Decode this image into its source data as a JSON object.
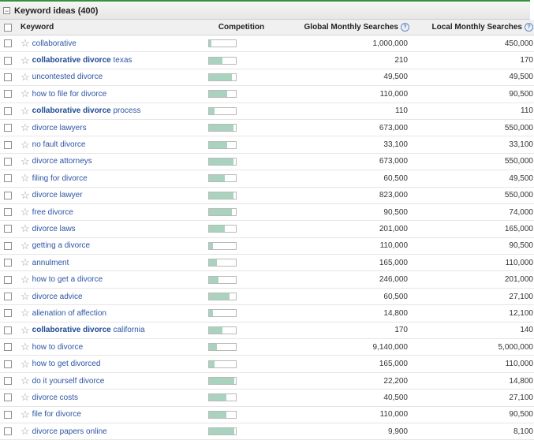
{
  "panel": {
    "title": "Keyword ideas (400)",
    "collapse_glyph": "−"
  },
  "columns": {
    "keyword": "Keyword",
    "competition": "Competition",
    "global": "Global Monthly Searches",
    "local": "Local Monthly Searches",
    "help_glyph": "?"
  },
  "icons": {
    "star": "star-icon",
    "help": "help-icon",
    "collapse": "collapse-icon"
  },
  "colors": {
    "accent_line": "#3a8f3a",
    "bar_fill": "#a9d3bf",
    "link": "#2d55a3"
  },
  "rows": [
    {
      "pre": "",
      "bold": "",
      "text": "collaborative",
      "competition": 0.08,
      "global": "1,000,000",
      "local": "450,000"
    },
    {
      "pre": "",
      "bold": "collaborative divorce",
      "text": " texas",
      "competition": 0.5,
      "global": "210",
      "local": "170"
    },
    {
      "pre": "",
      "bold": "",
      "text": "uncontested divorce",
      "competition": 0.85,
      "global": "49,500",
      "local": "49,500"
    },
    {
      "pre": "",
      "bold": "",
      "text": "how to file for divorce",
      "competition": 0.68,
      "global": "110,000",
      "local": "90,500"
    },
    {
      "pre": "",
      "bold": "collaborative divorce",
      "text": " process",
      "competition": 0.2,
      "global": "110",
      "local": "110"
    },
    {
      "pre": "",
      "bold": "",
      "text": "divorce lawyers",
      "competition": 0.9,
      "global": "673,000",
      "local": "550,000"
    },
    {
      "pre": "",
      "bold": "",
      "text": "no fault divorce",
      "competition": 0.68,
      "global": "33,100",
      "local": "33,100"
    },
    {
      "pre": "",
      "bold": "",
      "text": "divorce attorneys",
      "competition": 0.9,
      "global": "673,000",
      "local": "550,000"
    },
    {
      "pre": "",
      "bold": "",
      "text": "filing for divorce",
      "competition": 0.6,
      "global": "60,500",
      "local": "49,500"
    },
    {
      "pre": "",
      "bold": "",
      "text": "divorce lawyer",
      "competition": 0.9,
      "global": "823,000",
      "local": "550,000"
    },
    {
      "pre": "",
      "bold": "",
      "text": "free divorce",
      "competition": 0.85,
      "global": "90,500",
      "local": "74,000"
    },
    {
      "pre": "",
      "bold": "",
      "text": "divorce laws",
      "competition": 0.6,
      "global": "201,000",
      "local": "165,000"
    },
    {
      "pre": "",
      "bold": "",
      "text": "getting a divorce",
      "competition": 0.15,
      "global": "110,000",
      "local": "90,500"
    },
    {
      "pre": "",
      "bold": "",
      "text": "annulment",
      "competition": 0.3,
      "global": "165,000",
      "local": "110,000"
    },
    {
      "pre": "",
      "bold": "",
      "text": "how to get a divorce",
      "competition": 0.35,
      "global": "246,000",
      "local": "201,000"
    },
    {
      "pre": "",
      "bold": "",
      "text": "divorce advice",
      "competition": 0.75,
      "global": "60,500",
      "local": "27,100"
    },
    {
      "pre": "",
      "bold": "",
      "text": "alienation of affection",
      "competition": 0.15,
      "global": "14,800",
      "local": "12,100"
    },
    {
      "pre": "",
      "bold": "collaborative divorce",
      "text": " california",
      "competition": 0.5,
      "global": "170",
      "local": "140"
    },
    {
      "pre": "",
      "bold": "",
      "text": "how to divorce",
      "competition": 0.3,
      "global": "9,140,000",
      "local": "5,000,000"
    },
    {
      "pre": "",
      "bold": "",
      "text": "how to get divorced",
      "competition": 0.2,
      "global": "165,000",
      "local": "110,000"
    },
    {
      "pre": "",
      "bold": "",
      "text": "do it yourself divorce",
      "competition": 0.95,
      "global": "22,200",
      "local": "14,800"
    },
    {
      "pre": "",
      "bold": "",
      "text": "divorce costs",
      "competition": 0.65,
      "global": "40,500",
      "local": "27,100"
    },
    {
      "pre": "",
      "bold": "",
      "text": "file for divorce",
      "competition": 0.65,
      "global": "110,000",
      "local": "90,500"
    },
    {
      "pre": "",
      "bold": "",
      "text": "divorce papers online",
      "competition": 0.95,
      "global": "9,900",
      "local": "8,100"
    }
  ]
}
